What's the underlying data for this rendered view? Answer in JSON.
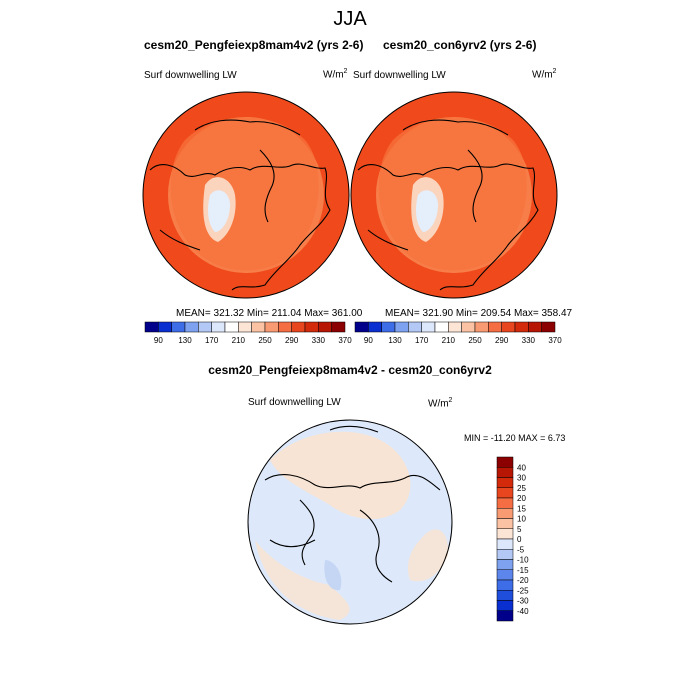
{
  "figure": {
    "title": "JJA"
  },
  "panels": [
    {
      "title": "cesm20_Pengfeiexp8mam4v2 (yrs 2-6)",
      "variable": "Surf downwelling LW",
      "units_base": "W/m",
      "units_exp": "2",
      "stats": "MEAN= 321.32  Min= 211.04  Max= 361.00"
    },
    {
      "title": "cesm20_con6yrv2 (yrs 2-6)",
      "variable": "Surf downwelling LW",
      "units_base": "W/m",
      "units_exp": "2",
      "stats": "MEAN= 321.90  Min= 209.54  Max= 358.47"
    }
  ],
  "diff_panel": {
    "title": "cesm20_Pengfeiexp8mam4v2 - cesm20_con6yrv2",
    "variable": "Surf downwelling LW",
    "units_base": "W/m",
    "units_exp": "2",
    "stats": "MIN = -11.20 MAX =   6.73"
  },
  "colorbar_abs": {
    "labels": [
      "90",
      "130",
      "170",
      "210",
      "250",
      "290",
      "330",
      "370"
    ],
    "colors": [
      "#00008b",
      "#0a2fd0",
      "#3d6ee8",
      "#7ea2f0",
      "#b3c8f5",
      "#dde7fb",
      "#ffffff",
      "#fde5d6",
      "#fbc3a3",
      "#f89a72",
      "#f46d43",
      "#e8461f",
      "#d42a0c",
      "#b71605",
      "#8b0000"
    ]
  },
  "colorbar_diff": {
    "labels": [
      "40",
      "30",
      "25",
      "20",
      "15",
      "10",
      "5",
      "0",
      "-5",
      "-10",
      "-15",
      "-20",
      "-25",
      "-30",
      "-40"
    ],
    "colors": [
      "#8b0000",
      "#b71605",
      "#d42a0c",
      "#e8461f",
      "#f46d43",
      "#f89a72",
      "#fbc3a3",
      "#fde5d6",
      "#dde7fb",
      "#b3c8f5",
      "#7ea2f0",
      "#5c86ec",
      "#3d6ee8",
      "#1f4ddc",
      "#0a2fd0",
      "#00008b"
    ]
  },
  "map_colors": {
    "ocean_abs": "#f04a1c",
    "inner_abs": "#f8844f",
    "ice_abs": "#e5eefb",
    "ice_edge_abs": "#fbd4bd",
    "diff_warm": "#fbe3cf",
    "diff_cool": "#dde9fa",
    "diff_cool2": "#c5d6f5"
  }
}
